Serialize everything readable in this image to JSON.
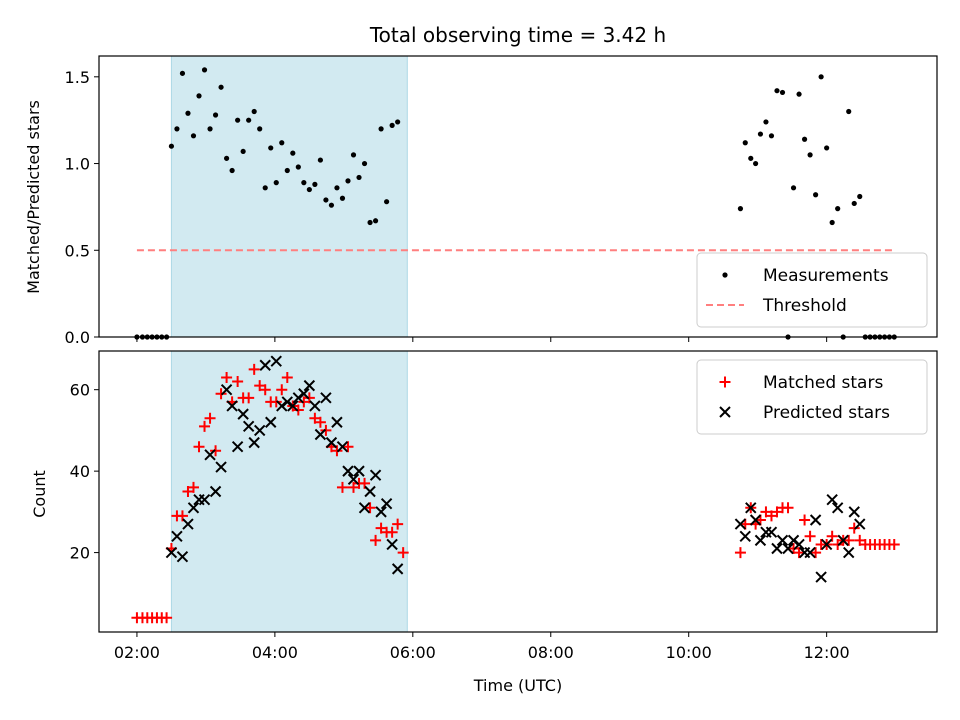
{
  "chart_data": {
    "title": "Total observing time = 3.42 h",
    "xlabel": "Time (UTC)",
    "x_unit": "hours UTC",
    "xlim": [
      1.45,
      13.6
    ],
    "x_ticks": [
      2,
      4,
      6,
      8,
      10,
      12
    ],
    "x_tick_labels": [
      "02:00",
      "04:00",
      "06:00",
      "08:00",
      "10:00",
      "12:00"
    ],
    "shaded_interval": [
      2.5,
      5.92
    ],
    "shade_color": "#add8e6",
    "panels": [
      {
        "type": "scatter",
        "ylabel": "Matched/Predicted stars",
        "ylim": [
          0,
          1.62
        ],
        "y_ticks": [
          0.0,
          0.5,
          1.0,
          1.5
        ],
        "y_tick_labels": [
          "0.0",
          "0.5",
          "1.0",
          "1.5"
        ],
        "legend_position": "lower-right",
        "threshold": {
          "name": "Threshold",
          "value": 0.5,
          "x_range": [
            2.0,
            13.0
          ],
          "color": "#ff7f7f",
          "style": "dashed"
        },
        "series": [
          {
            "name": "Measurements",
            "marker": "dot",
            "color": "#000000",
            "points": [
              [
                2.0,
                0
              ],
              [
                2.08,
                0
              ],
              [
                2.15,
                0
              ],
              [
                2.22,
                0
              ],
              [
                2.29,
                0
              ],
              [
                2.36,
                0
              ],
              [
                2.43,
                0
              ],
              [
                2.5,
                1.1
              ],
              [
                2.58,
                1.2
              ],
              [
                2.66,
                1.52
              ],
              [
                2.74,
                1.29
              ],
              [
                2.82,
                1.16
              ],
              [
                2.9,
                1.39
              ],
              [
                2.98,
                1.54
              ],
              [
                3.06,
                1.2
              ],
              [
                3.14,
                1.28
              ],
              [
                3.22,
                1.44
              ],
              [
                3.3,
                1.03
              ],
              [
                3.38,
                0.96
              ],
              [
                3.46,
                1.25
              ],
              [
                3.54,
                1.07
              ],
              [
                3.62,
                1.25
              ],
              [
                3.7,
                1.3
              ],
              [
                3.78,
                1.2
              ],
              [
                3.86,
                0.86
              ],
              [
                3.94,
                1.09
              ],
              [
                4.02,
                0.89
              ],
              [
                4.1,
                1.12
              ],
              [
                4.18,
                0.96
              ],
              [
                4.26,
                1.06
              ],
              [
                4.34,
                0.98
              ],
              [
                4.42,
                0.89
              ],
              [
                4.5,
                0.85
              ],
              [
                4.58,
                0.88
              ],
              [
                4.66,
                1.02
              ],
              [
                4.74,
                0.79
              ],
              [
                4.82,
                0.76
              ],
              [
                4.9,
                0.86
              ],
              [
                4.98,
                0.8
              ],
              [
                5.06,
                0.9
              ],
              [
                5.14,
                1.05
              ],
              [
                5.22,
                0.92
              ],
              [
                5.3,
                1.0
              ],
              [
                5.38,
                0.66
              ],
              [
                5.46,
                0.67
              ],
              [
                5.54,
                1.2
              ],
              [
                5.62,
                0.78
              ],
              [
                5.7,
                1.22
              ],
              [
                5.78,
                1.24
              ],
              [
                10.75,
                0.74
              ],
              [
                10.82,
                1.12
              ],
              [
                10.9,
                1.03
              ],
              [
                10.97,
                1.0
              ],
              [
                11.04,
                1.17
              ],
              [
                11.12,
                1.24
              ],
              [
                11.2,
                1.16
              ],
              [
                11.28,
                1.42
              ],
              [
                11.36,
                1.41
              ],
              [
                11.44,
                0
              ],
              [
                11.52,
                0.86
              ],
              [
                11.6,
                1.4
              ],
              [
                11.68,
                1.14
              ],
              [
                11.76,
                1.05
              ],
              [
                11.84,
                0.82
              ],
              [
                11.92,
                1.5
              ],
              [
                12.0,
                1.09
              ],
              [
                12.08,
                0.66
              ],
              [
                12.16,
                0.74
              ],
              [
                12.24,
                0
              ],
              [
                12.32,
                1.3
              ],
              [
                12.4,
                0.77
              ],
              [
                12.48,
                0.81
              ],
              [
                12.56,
                0
              ],
              [
                12.63,
                0
              ],
              [
                12.7,
                0
              ],
              [
                12.77,
                0
              ],
              [
                12.84,
                0
              ],
              [
                12.91,
                0
              ],
              [
                12.98,
                0
              ]
            ]
          }
        ]
      },
      {
        "type": "scatter",
        "ylabel": "Count",
        "ylim": [
          0.5,
          69.5
        ],
        "y_ticks": [
          20,
          40,
          60
        ],
        "y_tick_labels": [
          "20",
          "40",
          "60"
        ],
        "legend_position": "upper-right",
        "series": [
          {
            "name": "Matched stars",
            "marker": "plus",
            "color": "#ff0000",
            "points": [
              [
                2.0,
                4
              ],
              [
                2.08,
                4
              ],
              [
                2.15,
                4
              ],
              [
                2.22,
                4
              ],
              [
                2.29,
                4
              ],
              [
                2.36,
                4
              ],
              [
                2.43,
                4
              ],
              [
                2.5,
                21
              ],
              [
                2.58,
                29
              ],
              [
                2.66,
                29
              ],
              [
                2.74,
                35
              ],
              [
                2.82,
                36
              ],
              [
                2.9,
                46
              ],
              [
                2.98,
                51
              ],
              [
                3.06,
                53
              ],
              [
                3.14,
                45
              ],
              [
                3.22,
                59
              ],
              [
                3.3,
                63
              ],
              [
                3.38,
                57
              ],
              [
                3.46,
                62
              ],
              [
                3.54,
                58
              ],
              [
                3.62,
                58
              ],
              [
                3.7,
                65
              ],
              [
                3.78,
                61
              ],
              [
                3.86,
                60
              ],
              [
                3.94,
                57
              ],
              [
                4.02,
                57
              ],
              [
                4.1,
                60
              ],
              [
                4.18,
                63
              ],
              [
                4.26,
                56
              ],
              [
                4.34,
                55
              ],
              [
                4.42,
                57
              ],
              [
                4.5,
                58
              ],
              [
                4.58,
                53
              ],
              [
                4.66,
                52
              ],
              [
                4.74,
                50
              ],
              [
                4.82,
                46
              ],
              [
                4.9,
                45
              ],
              [
                4.98,
                36
              ],
              [
                5.06,
                46
              ],
              [
                5.14,
                36
              ],
              [
                5.22,
                37
              ],
              [
                5.3,
                37
              ],
              [
                5.38,
                31
              ],
              [
                5.46,
                23
              ],
              [
                5.54,
                26
              ],
              [
                5.62,
                25
              ],
              [
                5.7,
                25
              ],
              [
                5.78,
                27
              ],
              [
                5.86,
                20
              ],
              [
                10.75,
                20
              ],
              [
                10.82,
                27
              ],
              [
                10.9,
                31
              ],
              [
                10.97,
                27
              ],
              [
                11.04,
                28
              ],
              [
                11.12,
                30
              ],
              [
                11.2,
                29
              ],
              [
                11.28,
                30
              ],
              [
                11.36,
                31
              ],
              [
                11.44,
                31
              ],
              [
                11.52,
                21
              ],
              [
                11.6,
                20
              ],
              [
                11.68,
                28
              ],
              [
                11.76,
                24
              ],
              [
                11.84,
                20
              ],
              [
                11.92,
                22
              ],
              [
                12.0,
                22
              ],
              [
                12.08,
                24
              ],
              [
                12.16,
                22
              ],
              [
                12.24,
                23
              ],
              [
                12.32,
                23
              ],
              [
                12.4,
                26
              ],
              [
                12.48,
                23
              ],
              [
                12.56,
                22
              ],
              [
                12.63,
                22
              ],
              [
                12.7,
                22
              ],
              [
                12.77,
                22
              ],
              [
                12.84,
                22
              ],
              [
                12.91,
                22
              ],
              [
                12.98,
                22
              ]
            ]
          },
          {
            "name": "Predicted stars",
            "marker": "x",
            "color": "#000000",
            "points": [
              [
                2.5,
                20
              ],
              [
                2.58,
                24
              ],
              [
                2.66,
                19
              ],
              [
                2.74,
                27
              ],
              [
                2.82,
                31
              ],
              [
                2.9,
                33
              ],
              [
                2.98,
                33
              ],
              [
                3.06,
                44
              ],
              [
                3.14,
                35
              ],
              [
                3.22,
                41
              ],
              [
                3.3,
                60
              ],
              [
                3.38,
                56
              ],
              [
                3.46,
                46
              ],
              [
                3.54,
                54
              ],
              [
                3.62,
                51
              ],
              [
                3.7,
                47
              ],
              [
                3.78,
                50
              ],
              [
                3.86,
                66
              ],
              [
                3.94,
                52
              ],
              [
                4.02,
                67
              ],
              [
                4.1,
                56
              ],
              [
                4.18,
                57
              ],
              [
                4.26,
                56
              ],
              [
                4.34,
                58
              ],
              [
                4.42,
                59
              ],
              [
                4.5,
                61
              ],
              [
                4.58,
                56
              ],
              [
                4.66,
                49
              ],
              [
                4.74,
                58
              ],
              [
                4.82,
                47
              ],
              [
                4.9,
                52
              ],
              [
                4.98,
                46
              ],
              [
                5.06,
                40
              ],
              [
                5.14,
                38
              ],
              [
                5.22,
                40
              ],
              [
                5.3,
                31
              ],
              [
                5.38,
                35
              ],
              [
                5.46,
                39
              ],
              [
                5.54,
                30
              ],
              [
                5.62,
                32
              ],
              [
                5.7,
                22
              ],
              [
                5.78,
                16
              ],
              [
                10.75,
                27
              ],
              [
                10.82,
                24
              ],
              [
                10.9,
                31
              ],
              [
                10.97,
                28
              ],
              [
                11.04,
                23
              ],
              [
                11.12,
                25
              ],
              [
                11.2,
                25
              ],
              [
                11.28,
                21
              ],
              [
                11.36,
                23
              ],
              [
                11.44,
                21
              ],
              [
                11.52,
                23
              ],
              [
                11.6,
                22
              ],
              [
                11.68,
                20
              ],
              [
                11.76,
                20
              ],
              [
                11.84,
                28
              ],
              [
                11.92,
                14
              ],
              [
                12.0,
                22
              ],
              [
                12.08,
                33
              ],
              [
                12.16,
                31
              ],
              [
                12.24,
                23
              ],
              [
                12.32,
                20
              ],
              [
                12.4,
                30
              ],
              [
                12.48,
                27
              ]
            ]
          }
        ]
      }
    ]
  }
}
